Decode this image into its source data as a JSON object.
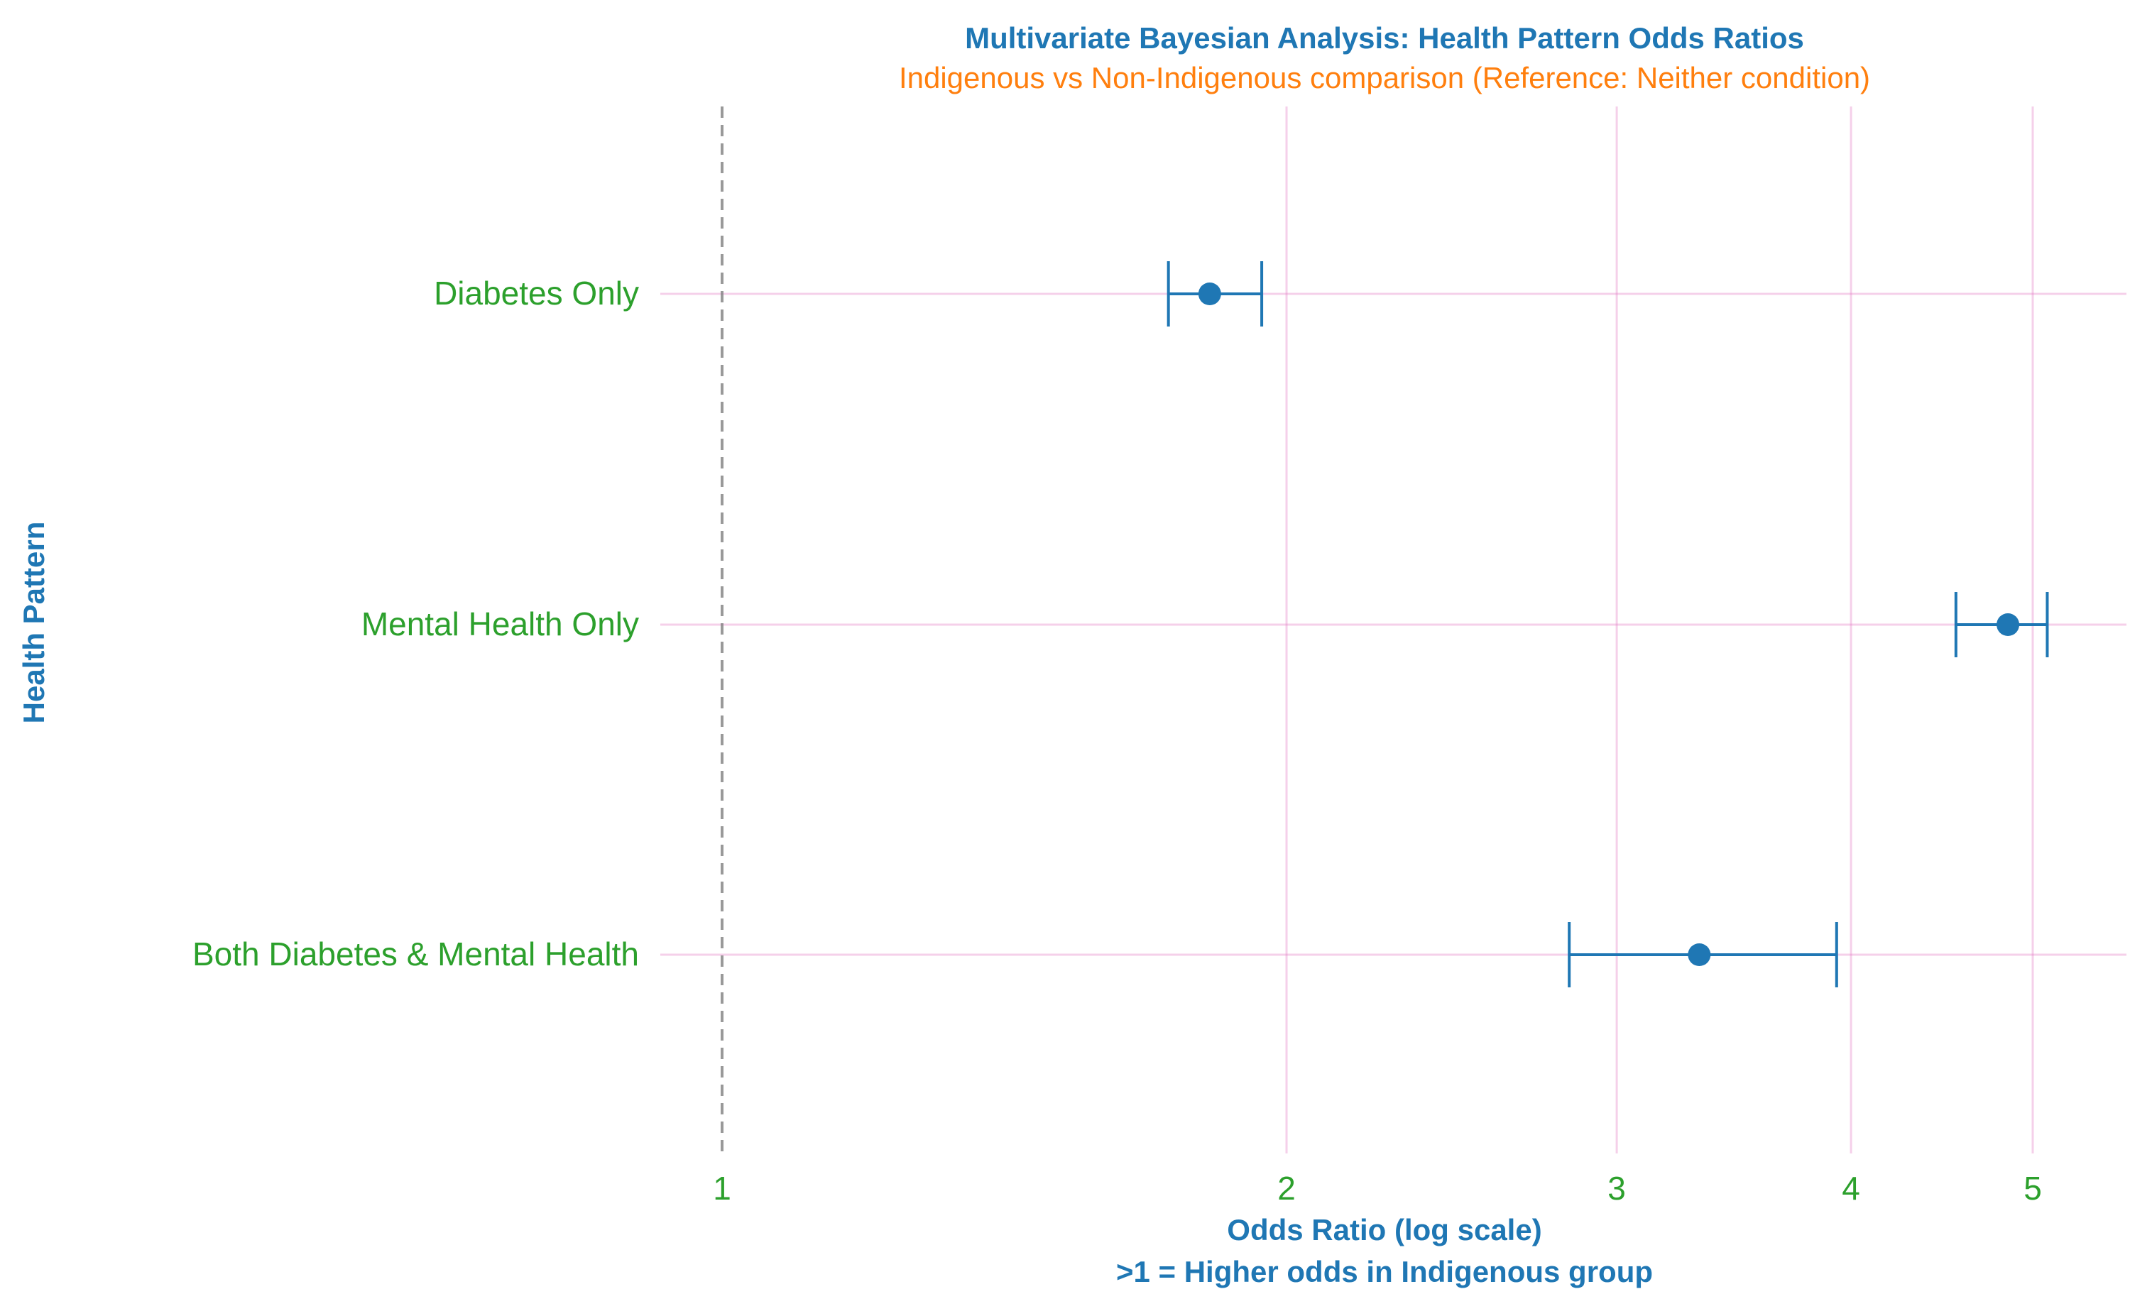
{
  "chart_data": {
    "type": "forest",
    "title": "Multivariate Bayesian Analysis: Health Pattern Odds Ratios",
    "subtitle": "Indigenous vs Non-Indigenous comparison (Reference: Neither condition)",
    "xlabel": "Odds Ratio (log scale)",
    "xlabel_note": ">1 = Higher odds in Indigenous group",
    "ylabel": "Health Pattern",
    "x_scale": "log",
    "xlim": [
      0.95,
      5.35
    ],
    "x_ticks": [
      1,
      2,
      3,
      4,
      5
    ],
    "x_tick_labels": [
      "1",
      "2",
      "3",
      "4",
      "5"
    ],
    "reference_line": 1,
    "grid": true,
    "categories": [
      "Diabetes Only",
      "Mental Health Only",
      "Both Diabetes & Mental Health"
    ],
    "estimates": [
      1.82,
      4.85,
      3.32
    ],
    "lower": [
      1.73,
      4.55,
      2.83
    ],
    "upper": [
      1.94,
      5.09,
      3.93
    ]
  },
  "colors": {
    "title": "#1f77b4",
    "subtitle": "#ff7f0e",
    "tick_label": "#2ca02c",
    "axis_label": "#1f77b4",
    "marker": "#1f77b4",
    "grid": "#e377c2",
    "reference_line": "#7f7f7f"
  }
}
